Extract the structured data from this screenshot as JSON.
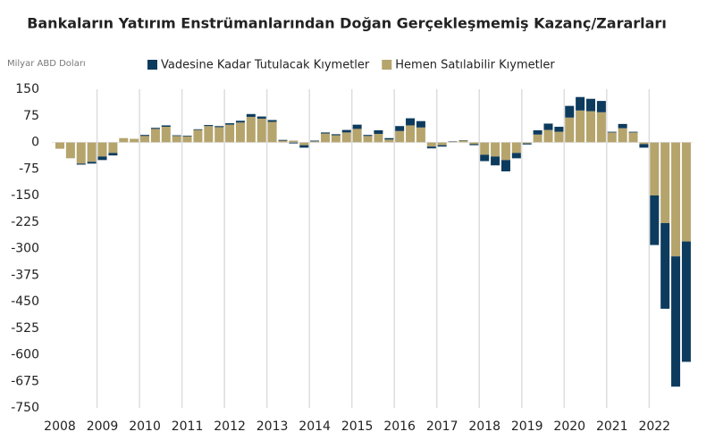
{
  "chart_data": {
    "type": "stacked_bar",
    "title": "Bankaların Yatırım Enstrümanlarından Doğan Gerçekleşmemiş Kazanç/Zararları",
    "y_label": "Milyar ABD Doları",
    "categories": [
      "2008",
      null,
      null,
      null,
      "2009",
      null,
      null,
      null,
      "2010",
      null,
      null,
      null,
      "2011",
      null,
      null,
      null,
      "2012",
      null,
      null,
      null,
      "2013",
      null,
      null,
      null,
      "2014",
      null,
      null,
      null,
      "2015",
      null,
      null,
      null,
      "2016",
      null,
      null,
      null,
      "2017",
      null,
      null,
      null,
      "2018",
      null,
      null,
      null,
      "2019",
      null,
      null,
      null,
      "2020",
      null,
      null,
      null,
      "2021",
      null,
      null,
      null,
      "2022",
      null,
      null,
      null
    ],
    "series": [
      {
        "name": "Vadesine Kadar Tutulacak Kıymetler",
        "color": "#0d3b5e",
        "values": [
          0,
          0,
          -3,
          -5,
          -10,
          -7,
          0,
          0,
          3,
          3,
          4,
          2,
          2,
          2,
          3,
          3,
          4,
          5,
          8,
          6,
          5,
          2,
          -3,
          -7,
          2,
          3,
          3,
          7,
          12,
          3,
          10,
          4,
          14,
          20,
          18,
          -5,
          -4,
          1,
          1,
          -3,
          -18,
          -25,
          -32,
          -15,
          -3,
          12,
          18,
          14,
          33,
          38,
          35,
          32,
          2,
          12,
          2,
          -10,
          -140,
          -242,
          -368,
          -340
        ]
      },
      {
        "name": "Hemen Satılabilir Kıymetler",
        "color": "#b5a46c",
        "values": [
          -18,
          -45,
          -60,
          -55,
          -40,
          -30,
          12,
          10,
          18,
          38,
          44,
          18,
          17,
          35,
          46,
          43,
          50,
          56,
          72,
          67,
          58,
          5,
          5,
          -8,
          3,
          25,
          20,
          28,
          38,
          18,
          24,
          8,
          32,
          48,
          42,
          -12,
          -8,
          2,
          5,
          -5,
          -35,
          -40,
          -50,
          -30,
          -3,
          22,
          35,
          30,
          70,
          90,
          88,
          85,
          28,
          40,
          28,
          -5,
          -150,
          -228,
          -322,
          -280
        ]
      }
    ],
    "ylim": [
      -750,
      150
    ],
    "yticks": [
      150,
      75,
      0,
      -75,
      -150,
      -225,
      -300,
      -375,
      -450,
      -525,
      -600,
      -675,
      -750
    ]
  }
}
